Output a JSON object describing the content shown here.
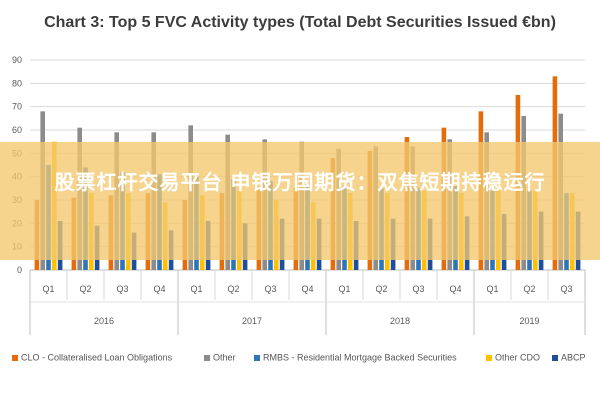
{
  "title": "Chart 3: Top 5 FVC Activity types (Total Debt Securities Issued €bn)",
  "overlay_text": "股票杠杆交易平台 申银万国期货：双焦短期持稳运行",
  "colors": {
    "clo": "#e46c0a",
    "other": "#8c8c8c",
    "rmbs": "#2e75b6",
    "other_cdo": "#ffc000",
    "abcp": "#1f4e9a",
    "banner": "#f4c86e"
  },
  "chart_data": {
    "type": "bar",
    "title": "Chart 3: Top 5 FVC Activity types (Total Debt Securities Issued €bn)",
    "xlabel": "",
    "ylabel": "",
    "ylim": [
      0,
      90
    ],
    "yticks": [
      0,
      10,
      20,
      30,
      40,
      50,
      60,
      70,
      80,
      90
    ],
    "grid": true,
    "legend_position": "bottom",
    "categories": [
      "Q1",
      "Q2",
      "Q3",
      "Q4",
      "Q1",
      "Q2",
      "Q3",
      "Q4",
      "Q1",
      "Q2",
      "Q3",
      "Q4",
      "Q1",
      "Q2",
      "Q3"
    ],
    "groups": [
      {
        "label": "2016",
        "start": 0,
        "end": 3
      },
      {
        "label": "2017",
        "start": 4,
        "end": 7
      },
      {
        "label": "2018",
        "start": 8,
        "end": 11
      },
      {
        "label": "2019",
        "start": 12,
        "end": 14
      }
    ],
    "series": [
      {
        "name": "CLO - Collateralised Loan Obligations",
        "color": "#e46c0a",
        "values": [
          30,
          31,
          32,
          33,
          30,
          33,
          36,
          35,
          48,
          51,
          57,
          61,
          68,
          75,
          83
        ]
      },
      {
        "name": "Other",
        "color": "#8c8c8c",
        "values": [
          68,
          61,
          59,
          59,
          62,
          58,
          56,
          55,
          52,
          53,
          53,
          56,
          59,
          66,
          67
        ]
      },
      {
        "name": "RMBS - Residential Mortgage Backed Securities",
        "color": "#2e75b6",
        "values": [
          45,
          44,
          42,
          41,
          40,
          39,
          38,
          37,
          36,
          35,
          35,
          36,
          34,
          34,
          33
        ]
      },
      {
        "name": "Other CDO",
        "color": "#ffc000",
        "values": [
          55,
          33,
          33,
          29,
          32,
          34,
          30,
          29,
          33,
          33,
          34,
          33,
          35,
          34,
          33
        ]
      },
      {
        "name": "ABCP",
        "color": "#1f4e9a",
        "values": [
          21,
          19,
          16,
          17,
          21,
          20,
          22,
          22,
          21,
          22,
          22,
          23,
          24,
          25,
          25
        ]
      }
    ]
  },
  "legend": [
    {
      "label": "CLO - Collateralised Loan Obligations",
      "color": "#e46c0a"
    },
    {
      "label": "Other",
      "color": "#8c8c8c"
    },
    {
      "label": "RMBS - Residential Mortgage Backed Securities",
      "color": "#2e75b6"
    },
    {
      "label": "Other CDO",
      "color": "#ffc000"
    },
    {
      "label": "ABCP",
      "color": "#1f4e9a"
    }
  ]
}
